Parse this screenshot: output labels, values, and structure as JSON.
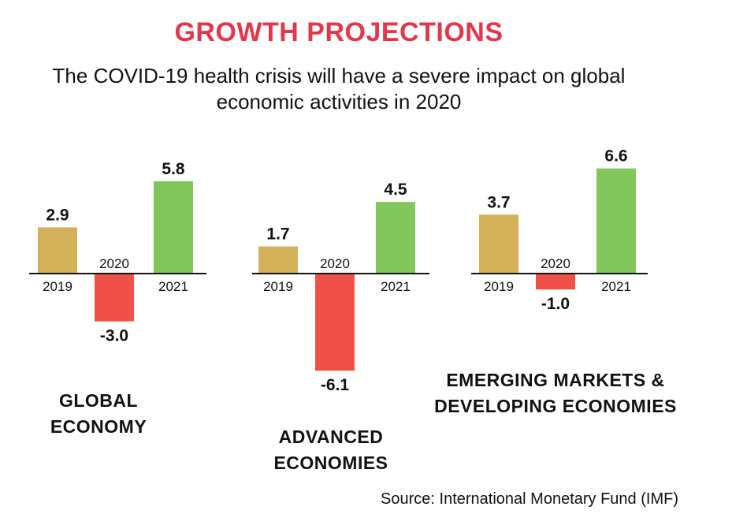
{
  "title": "GROWTH PROJECTIONS",
  "subtitle": "The COVID-19 health crisis will have a severe impact on global economic activities in 2020",
  "source": "Source: International Monetary Fund (IMF)",
  "colors": {
    "title": "#e0384a",
    "2019": "#d3b05a",
    "2020": "#ee5146",
    "2021": "#82c75b"
  },
  "chart_data": [
    {
      "type": "bar",
      "title": "GLOBAL ECONOMY",
      "categories": [
        "2019",
        "2020",
        "2021"
      ],
      "values": [
        2.9,
        -3.0,
        5.8
      ],
      "value_labels": [
        "2.9",
        "-3.0",
        "5.8"
      ]
    },
    {
      "type": "bar",
      "title": "ADVANCED ECONOMIES",
      "categories": [
        "2019",
        "2020",
        "2021"
      ],
      "values": [
        1.7,
        -6.1,
        4.5
      ],
      "value_labels": [
        "1.7",
        "-6.1",
        "4.5"
      ]
    },
    {
      "type": "bar",
      "title": "EMERGING MARKETS & DEVELOPING ECONOMIES",
      "categories": [
        "2019",
        "2020",
        "2021"
      ],
      "values": [
        3.7,
        -1.0,
        6.6
      ],
      "value_labels": [
        "3.7",
        "-1.0",
        "6.6"
      ]
    }
  ],
  "panel_labels": [
    [
      "GLOBAL",
      "ECONOMY"
    ],
    [
      "ADVANCED",
      "ECONOMIES"
    ],
    [
      "EMERGING MARKETS &",
      "DEVELOPING ECONOMIES"
    ]
  ]
}
